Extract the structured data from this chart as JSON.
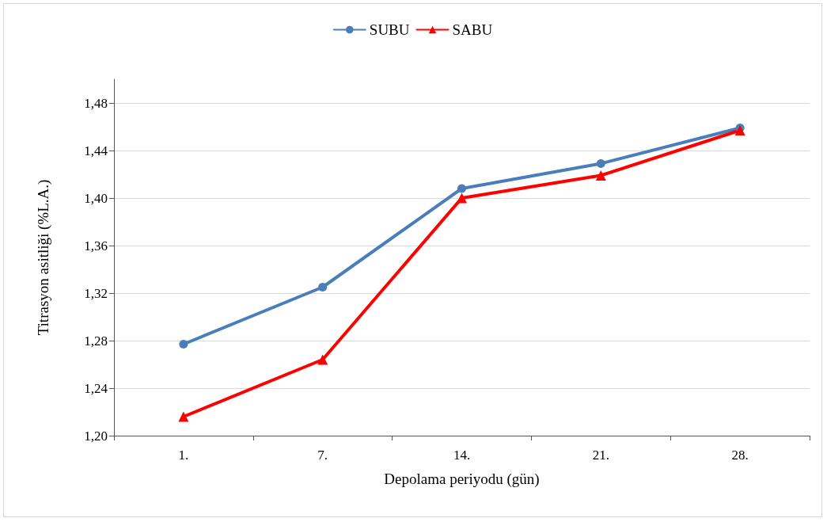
{
  "chart_data": {
    "type": "line",
    "xlabel": "Depolama periyodu (gün)",
    "ylabel": "Titrasyon asitliği (%L.A.)",
    "categories": [
      "1.",
      "7.",
      "14.",
      "21.",
      "28."
    ],
    "series": [
      {
        "name": "SUBU",
        "color": "#4a7ebb",
        "marker": "circle",
        "values": [
          1.277,
          1.325,
          1.408,
          1.429,
          1.459
        ]
      },
      {
        "name": "SABU",
        "color": "#ff0000",
        "marker": "triangle",
        "values": [
          1.216,
          1.264,
          1.4,
          1.419,
          1.457
        ]
      }
    ],
    "ylim": [
      1.2,
      1.5
    ],
    "yticks": [
      {
        "value": 1.2,
        "label": "1,20"
      },
      {
        "value": 1.24,
        "label": "1,24"
      },
      {
        "value": 1.28,
        "label": "1,28"
      },
      {
        "value": 1.32,
        "label": "1,32"
      },
      {
        "value": 1.36,
        "label": "1,36"
      },
      {
        "value": 1.4,
        "label": "1,40"
      },
      {
        "value": 1.44,
        "label": "1,44"
      },
      {
        "value": 1.48,
        "label": "1,48"
      }
    ],
    "grid": "y",
    "legend": "top",
    "line_style": "solid"
  }
}
